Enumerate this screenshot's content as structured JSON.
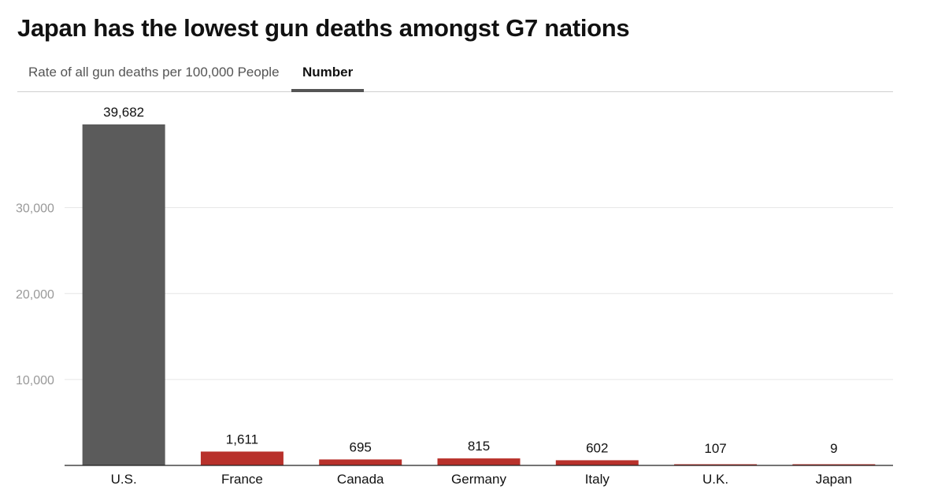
{
  "title": "Japan has the lowest gun deaths amongst G7 nations",
  "tabs": [
    {
      "label": "Rate of all gun deaths per 100,000 People",
      "active": false
    },
    {
      "label": "Number",
      "active": true
    }
  ],
  "colors": {
    "highlight": "#5b5b5b",
    "others": "#b8312b",
    "grid": "#e6e6e6",
    "axis": "#222222",
    "tick_text": "#999999",
    "label_text": "#111111"
  },
  "chart_data": {
    "type": "bar",
    "title": "Japan has the lowest gun deaths amongst G7 nations",
    "xlabel": "",
    "ylabel": "",
    "categories": [
      "U.S.",
      "France",
      "Canada",
      "Germany",
      "Italy",
      "U.K.",
      "Japan"
    ],
    "values": [
      39682,
      1611,
      695,
      815,
      602,
      107,
      9
    ],
    "value_labels": [
      "39,682",
      "1,611",
      "695",
      "815",
      "602",
      "107",
      "9"
    ],
    "highlight_index": 0,
    "ylim": [
      0,
      39682
    ],
    "yticks": [
      10000,
      20000,
      30000
    ],
    "ytick_labels": [
      "10,000",
      "20,000",
      "30,000"
    ],
    "grid": true,
    "legend": "none"
  }
}
